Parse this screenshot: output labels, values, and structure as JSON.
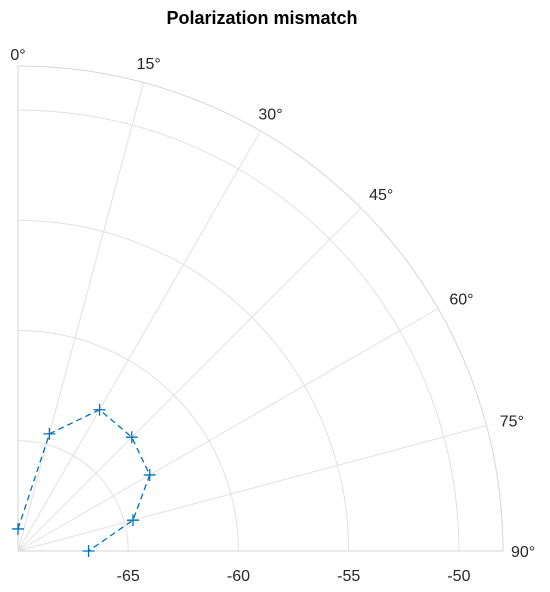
{
  "chart_data": {
    "type": "polar",
    "title": "Polarization mismatch",
    "angle_unit": "degrees",
    "theta_zero_location": "top",
    "theta_direction": "clockwise",
    "theta_range": [
      0,
      90
    ],
    "theta_ticks": [
      0,
      15,
      30,
      45,
      60,
      75,
      90
    ],
    "theta_tick_labels": [
      "0°",
      "15°",
      "30°",
      "45°",
      "60°",
      "75°",
      "90°"
    ],
    "r_range": [
      -70,
      -48
    ],
    "r_ticks": [
      -65,
      -60,
      -55,
      -50
    ],
    "r_tick_labels": [
      "-65",
      "-60",
      "-55",
      "-50"
    ],
    "grid": true,
    "series": [
      {
        "color": "#0072bd",
        "line_style": "dashed",
        "marker": "plus",
        "theta": [
          0,
          15,
          30,
          45,
          60,
          75,
          90
        ],
        "r": [
          -69.0,
          -64.5,
          -62.6,
          -62.7,
          -63.1,
          -64.6,
          -66.8
        ]
      }
    ]
  }
}
